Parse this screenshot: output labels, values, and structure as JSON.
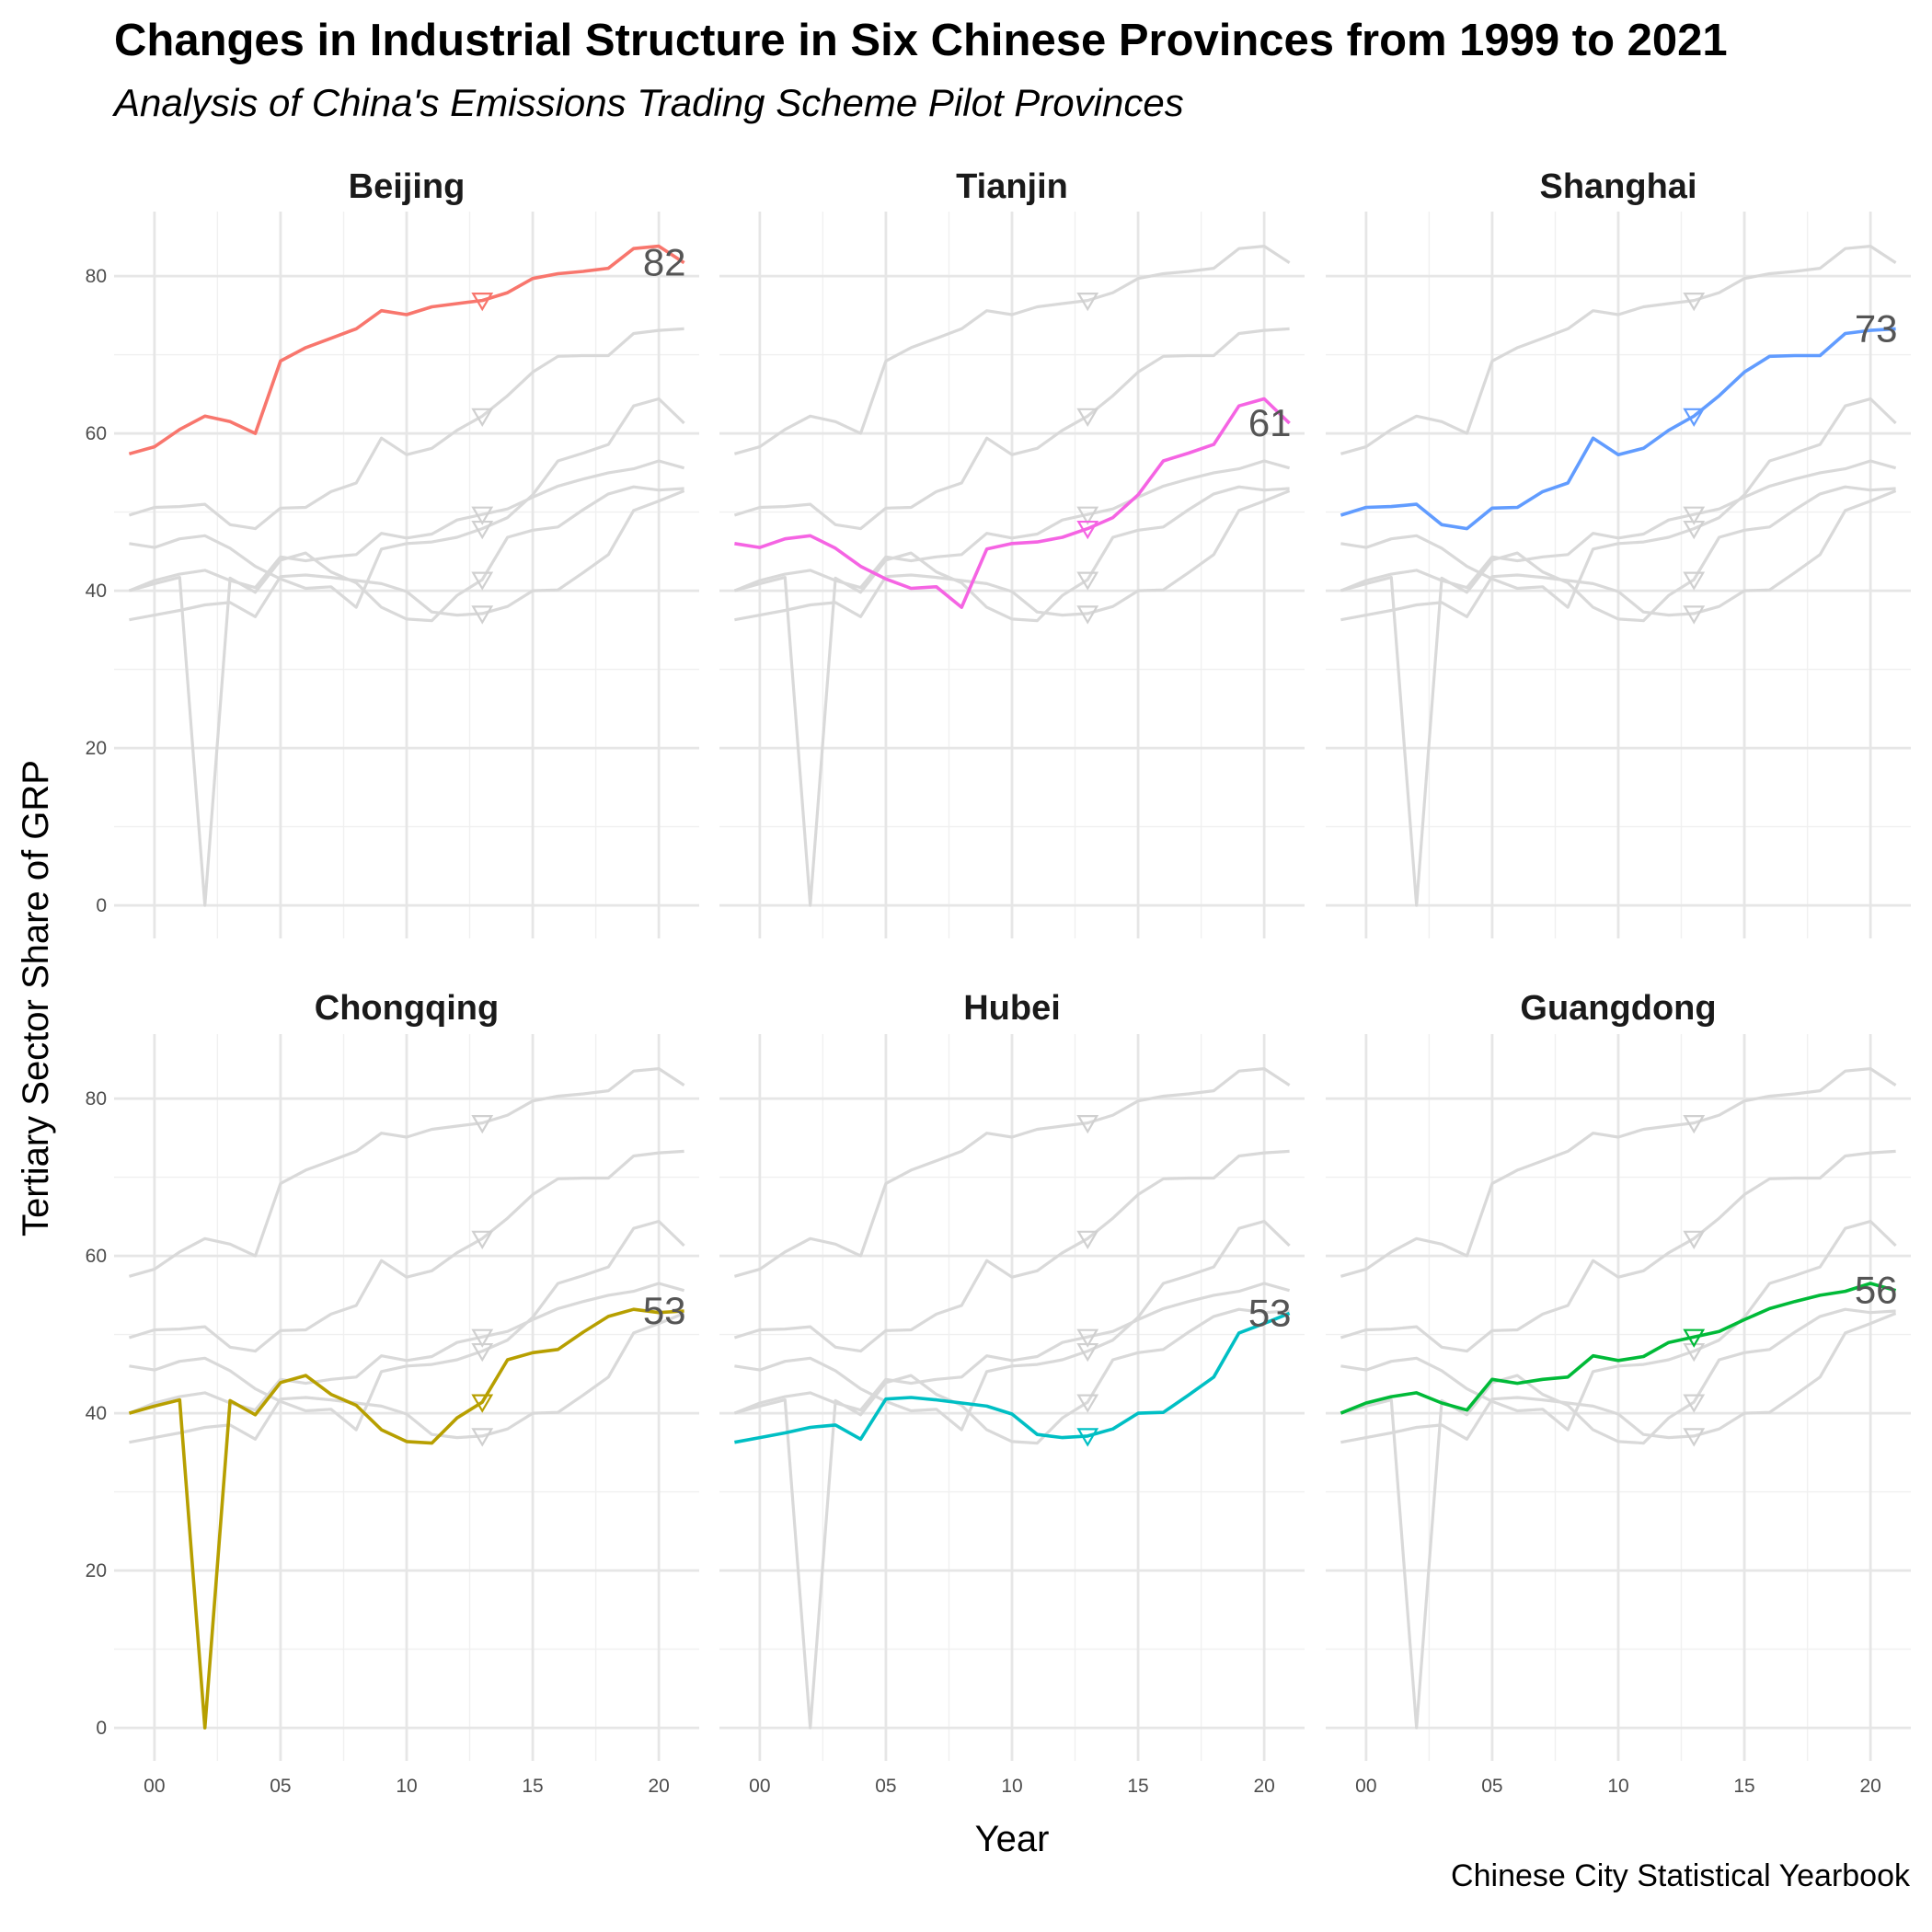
{
  "chart_data": {
    "type": "line",
    "title": "Changes in Industrial Structure in Six Chinese Provinces from 1999 to 2021",
    "subtitle": "Analysis of China's Emissions Trading Scheme Pilot Provinces",
    "caption": "Chinese City Statistical Yearbook",
    "xlabel": "Year",
    "ylabel": "Tertiary Sector Share of GRP",
    "x": [
      1999,
      2000,
      2001,
      2002,
      2003,
      2004,
      2005,
      2006,
      2007,
      2008,
      2009,
      2010,
      2011,
      2012,
      2013,
      2014,
      2015,
      2016,
      2017,
      2018,
      2019,
      2020,
      2021
    ],
    "x_ticks": [
      2000,
      2005,
      2010,
      2015,
      2020
    ],
    "x_tick_labels": [
      "00",
      "05",
      "10",
      "15",
      "20"
    ],
    "y_ticks": [
      0,
      20,
      40,
      60,
      80
    ],
    "y_tick_labels": [
      "0",
      "20",
      "40",
      "60",
      "80"
    ],
    "xlim": [
      1998.4,
      2021.6
    ],
    "ylim": [
      -4.2,
      88.2
    ],
    "marker_year": 2013,
    "grid": true,
    "legend": "none",
    "series": [
      {
        "name": "Beijing",
        "color": "#F8766D",
        "end_label": "82",
        "values": [
          57.4,
          58.3,
          60.5,
          62.2,
          61.5,
          60.0,
          69.2,
          70.9,
          72.1,
          73.3,
          75.6,
          75.1,
          76.1,
          76.5,
          76.9,
          77.9,
          79.7,
          80.3,
          80.6,
          81.0,
          83.5,
          83.8,
          81.7
        ]
      },
      {
        "name": "Tianjin",
        "color": "#F564E3",
        "end_label": "61",
        "values": [
          46.0,
          45.5,
          46.6,
          47.0,
          45.4,
          43.1,
          41.5,
          40.3,
          40.5,
          37.9,
          45.3,
          46.0,
          46.2,
          46.8,
          47.9,
          49.3,
          52.2,
          56.5,
          57.5,
          58.6,
          63.5,
          64.4,
          61.3
        ]
      },
      {
        "name": "Shanghai",
        "color": "#619CFF",
        "end_label": "73",
        "values": [
          49.6,
          50.6,
          50.7,
          51.0,
          48.4,
          47.9,
          50.5,
          50.6,
          52.6,
          53.7,
          59.4,
          57.3,
          58.1,
          60.4,
          62.2,
          64.8,
          67.8,
          69.8,
          69.9,
          69.9,
          72.7,
          73.1,
          73.3
        ]
      },
      {
        "name": "Chongqing",
        "color": "#B79F00",
        "end_label": "53",
        "values": [
          40.0,
          40.9,
          41.7,
          0.0,
          41.6,
          39.8,
          43.9,
          44.8,
          42.4,
          41.0,
          37.9,
          36.4,
          36.2,
          39.4,
          41.4,
          46.8,
          47.7,
          48.1,
          50.3,
          52.3,
          53.2,
          52.8,
          53.0
        ]
      },
      {
        "name": "Hubei",
        "color": "#00BFC4",
        "end_label": "53",
        "values": [
          36.3,
          36.9,
          37.5,
          38.2,
          38.5,
          36.7,
          41.8,
          42.0,
          41.7,
          41.3,
          40.9,
          39.9,
          37.3,
          36.9,
          37.1,
          38.0,
          40.0,
          40.1,
          42.3,
          44.6,
          50.2,
          51.4,
          52.7
        ]
      },
      {
        "name": "Guangdong",
        "color": "#00BA38",
        "end_label": "56",
        "values": [
          40.0,
          41.3,
          42.1,
          42.6,
          41.3,
          40.4,
          44.3,
          43.8,
          44.3,
          44.6,
          47.3,
          46.7,
          47.2,
          49.0,
          49.7,
          50.4,
          51.9,
          53.3,
          54.2,
          55.0,
          55.5,
          56.5,
          55.6
        ]
      }
    ]
  }
}
